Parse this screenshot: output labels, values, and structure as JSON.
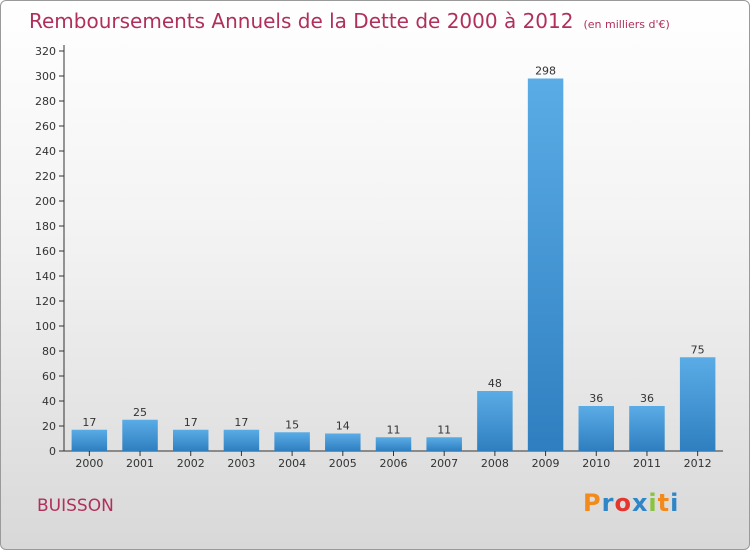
{
  "header": {
    "title": "Remboursements Annuels de la Dette de 2000 à 2012",
    "unit": "(en milliers d'€)"
  },
  "footer": {
    "commune": "BUISSON",
    "logo": "Proxiti",
    "logo_colors": [
      "#f28a1c",
      "#2e86c8",
      "#e5352d",
      "#2e86c8",
      "#8ac43f",
      "#f28a1c",
      "#2e86c8"
    ]
  },
  "chart_data": {
    "type": "bar",
    "title": "Remboursements Annuels de la Dette de 2000 à 2012",
    "subtitle": "(en milliers d'€)",
    "xlabel": "",
    "ylabel": "",
    "categories": [
      "2000",
      "2001",
      "2002",
      "2003",
      "2004",
      "2005",
      "2006",
      "2007",
      "2008",
      "2009",
      "2010",
      "2011",
      "2012"
    ],
    "values": [
      17,
      25,
      17,
      17,
      15,
      14,
      11,
      11,
      48,
      298,
      36,
      36,
      75
    ],
    "ylim": [
      0,
      320
    ],
    "yticks": [
      0,
      20,
      40,
      60,
      80,
      100,
      120,
      140,
      160,
      180,
      200,
      220,
      240,
      260,
      280,
      300,
      320
    ],
    "grid": false,
    "legend": "none",
    "bar_color_top": "#5aace6",
    "bar_color_bottom": "#2f7fc0",
    "axis_color": "#333333"
  }
}
